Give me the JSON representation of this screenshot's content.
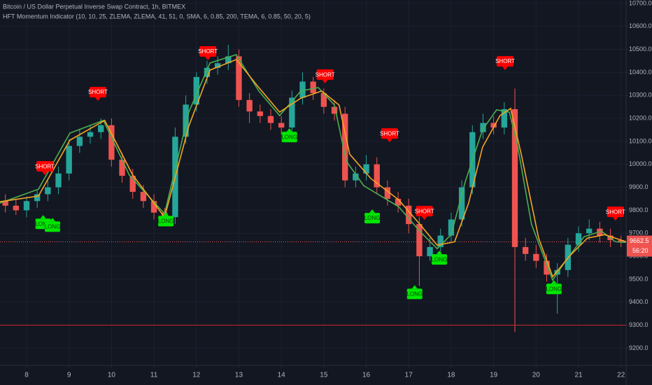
{
  "chart_data": {
    "type": "candlestick",
    "title": "Bitcoin / US Dollar Perpetual Inverse Swap Contract, 1h, BITMEX",
    "subtitle": "HFT Momentum Indicator (10, 10, 25, ZLEMA, ZLEMA, 41, 51, 0, SMA, 6, 0.85, 200, TEMA, 6, 0.85, 50, 20, 5)",
    "xlim": [
      7.374,
      22.12
    ],
    "xticks": [
      8,
      9,
      10,
      11,
      12,
      13,
      14,
      15,
      16,
      17,
      18,
      19,
      20,
      21,
      22
    ],
    "ylim": [
      9125,
      10715
    ],
    "yticks": [
      {
        "value": 9200,
        "label": "9200.0"
      },
      {
        "value": 9300,
        "label": "9300.0"
      },
      {
        "value": 9400,
        "label": "9400.0"
      },
      {
        "value": 9500,
        "label": "9500.0"
      },
      {
        "value": 9600,
        "label": "9600.0"
      },
      {
        "value": 9700,
        "label": "9700.0"
      },
      {
        "value": 9800,
        "label": "9800.0"
      },
      {
        "value": 9900,
        "label": "9900.0"
      },
      {
        "value": 10000,
        "label": "10000.0"
      },
      {
        "value": 10100,
        "label": "10100.0"
      },
      {
        "value": 10200,
        "label": "10200.0"
      },
      {
        "value": 10300,
        "label": "10300.0"
      },
      {
        "value": 10400,
        "label": "10400.0"
      },
      {
        "value": 10500,
        "label": "10500.0"
      },
      {
        "value": 10600,
        "label": "10600.0"
      },
      {
        "value": 10700,
        "label": "10700.0"
      }
    ],
    "grid": true,
    "up_color": "#26a69a",
    "down_color": "#ef5350",
    "x": [
      7.5,
      7.75,
      8.0,
      8.25,
      8.5,
      8.75,
      9.0,
      9.25,
      9.5,
      9.75,
      10.0,
      10.25,
      10.5,
      10.75,
      11.0,
      11.25,
      11.5,
      11.75,
      12.0,
      12.25,
      12.5,
      12.75,
      13.0,
      13.25,
      13.5,
      13.75,
      14.0,
      14.25,
      14.5,
      14.75,
      15.0,
      15.25,
      15.5,
      15.75,
      16.0,
      16.25,
      16.5,
      16.75,
      17.0,
      17.25,
      17.5,
      17.75,
      18.0,
      18.25,
      18.5,
      18.75,
      19.0,
      19.25,
      19.5,
      19.75,
      20.0,
      20.25,
      20.5,
      20.75,
      21.0,
      21.25,
      21.5,
      21.75,
      22.0
    ],
    "open": [
      9840,
      9820,
      9800,
      9840,
      9870,
      9900,
      9960,
      10080,
      10120,
      10140,
      10170,
      10020,
      9950,
      9880,
      9840,
      9790,
      9770,
      10120,
      10260,
      10380,
      10420,
      10440,
      10470,
      10280,
      10230,
      10210,
      10180,
      10160,
      10290,
      10360,
      10310,
      10250,
      10220,
      9930,
      9960,
      10000,
      9900,
      9850,
      9820,
      9740,
      9600,
      9640,
      9690,
      9760,
      9900,
      10140,
      10180,
      10160,
      10240,
      9640,
      9610,
      9580,
      9520,
      9540,
      9650,
      9700,
      9720,
      9690,
      9670
    ],
    "high": [
      9870,
      9850,
      9860,
      9890,
      9930,
      9990,
      10110,
      10150,
      10170,
      10200,
      10200,
      10050,
      9980,
      9910,
      9870,
      9810,
      10160,
      10300,
      10400,
      10450,
      10470,
      10520,
      10500,
      10310,
      10260,
      10240,
      10210,
      10320,
      10400,
      10380,
      10330,
      10280,
      10250,
      9990,
      10040,
      10030,
      9930,
      9880,
      9850,
      9770,
      9680,
      9720,
      9790,
      9930,
      10170,
      10220,
      10210,
      10270,
      10330,
      9680,
      9650,
      9610,
      9570,
      9680,
      9730,
      9760,
      9750,
      9720,
      9690
    ],
    "low": [
      9790,
      9780,
      9770,
      9810,
      9840,
      9870,
      9930,
      10050,
      10090,
      10110,
      9990,
      9920,
      9850,
      9810,
      9760,
      9740,
      9740,
      10090,
      10230,
      10350,
      10390,
      10410,
      10250,
      10180,
      10180,
      10150,
      10130,
      10130,
      10260,
      10280,
      10220,
      10190,
      9900,
      9900,
      9930,
      9870,
      9820,
      9790,
      9700,
      9470,
      9580,
      9610,
      9660,
      9730,
      9870,
      10110,
      10130,
      10130,
      9270,
      9580,
      9550,
      9490,
      9350,
      9510,
      9620,
      9670,
      9660,
      9640,
      9640
    ],
    "close": [
      9820,
      9800,
      9840,
      9870,
      9900,
      9960,
      10080,
      10120,
      10140,
      10170,
      10020,
      9950,
      9880,
      9840,
      9790,
      9770,
      10120,
      10260,
      10380,
      10420,
      10440,
      10470,
      10280,
      10230,
      10210,
      10180,
      10160,
      10290,
      10360,
      10310,
      10250,
      10220,
      9930,
      9960,
      10000,
      9900,
      9850,
      9820,
      9740,
      9600,
      9640,
      9690,
      9760,
      9900,
      10140,
      10180,
      10160,
      10240,
      9640,
      9610,
      9580,
      9520,
      9540,
      9650,
      9700,
      9720,
      9690,
      9670,
      9662
    ],
    "series": [
      {
        "color": "#4caf50",
        "x": [
          7.37,
          8.28,
          9.02,
          9.81,
          10.42,
          11.25,
          11.82,
          12.32,
          12.94,
          13.47,
          13.96,
          14.46,
          14.87,
          15.25,
          15.53,
          15.94,
          16.76,
          17.26,
          17.67,
          18.0,
          18.33,
          18.74,
          19.07,
          19.37,
          19.57,
          19.89,
          20.39,
          20.72,
          21.13,
          21.54,
          21.87,
          22.12
        ],
        "values": [
          9831,
          9892,
          10136,
          10191,
          9953,
          9785,
          10227,
          10441,
          10477,
          10319,
          10212,
          10319,
          10334,
          10258,
          10014,
          9907,
          9816,
          9709,
          9633,
          9694,
          9923,
          10151,
          10237,
          10227,
          10075,
          9740,
          9496,
          9587,
          9685,
          9709,
          9663,
          9660
        ]
      },
      {
        "color": "#f5a623",
        "x": [
          7.37,
          8.28,
          9.02,
          9.84,
          10.5,
          11.25,
          11.82,
          12.32,
          12.94,
          13.47,
          13.96,
          14.46,
          14.95,
          15.36,
          15.61,
          16.11,
          16.76,
          17.26,
          17.67,
          18.08,
          18.41,
          18.74,
          19.15,
          19.4,
          19.65,
          20.06,
          20.39,
          20.8,
          21.21,
          21.62,
          22.12
        ],
        "values": [
          9837,
          9862,
          10105,
          10191,
          9953,
          9770,
          10166,
          10410,
          10456,
          10334,
          10227,
          10288,
          10319,
          10258,
          10044,
          9938,
          9846,
          9740,
          9648,
          9663,
          9831,
          10075,
          10212,
          10243,
          10044,
          9679,
          9511,
          9603,
          9679,
          9694,
          9663
        ]
      }
    ],
    "short_color": "#ff0000",
    "long_color": "#00e600",
    "signals": [
      {
        "text": "SHORT",
        "x": 8.43,
        "y": 9953
      },
      {
        "text": "SHORT",
        "x": 9.68,
        "y": 10276
      },
      {
        "text": "SHORT",
        "x": 12.27,
        "y": 10453
      },
      {
        "text": "SHORT",
        "x": 15.03,
        "y": 10352
      },
      {
        "text": "SHORT",
        "x": 16.55,
        "y": 10096
      },
      {
        "text": "SHORT",
        "x": 17.37,
        "y": 9758
      },
      {
        "text": "SHORT",
        "x": 19.27,
        "y": 10410
      },
      {
        "text": "SHORT",
        "x": 21.87,
        "y": 9755
      },
      {
        "text": "LONG",
        "x": 8.39,
        "y": 9779
      },
      {
        "text": "LONG",
        "x": 8.61,
        "y": 9767
      },
      {
        "text": "LONG",
        "x": 11.28,
        "y": 9791
      },
      {
        "text": "LONG",
        "x": 14.19,
        "y": 10157
      },
      {
        "text": "LONG",
        "x": 16.14,
        "y": 9804
      },
      {
        "text": "LONG",
        "x": 17.14,
        "y": 9474
      },
      {
        "text": "LONG",
        "x": 17.72,
        "y": 9624
      },
      {
        "text": "LONG",
        "x": 20.42,
        "y": 9496
      }
    ],
    "hline": {
      "value": 9300,
      "color": "#c62828"
    },
    "last_price": 9662.5,
    "countdown": "56:20"
  }
}
